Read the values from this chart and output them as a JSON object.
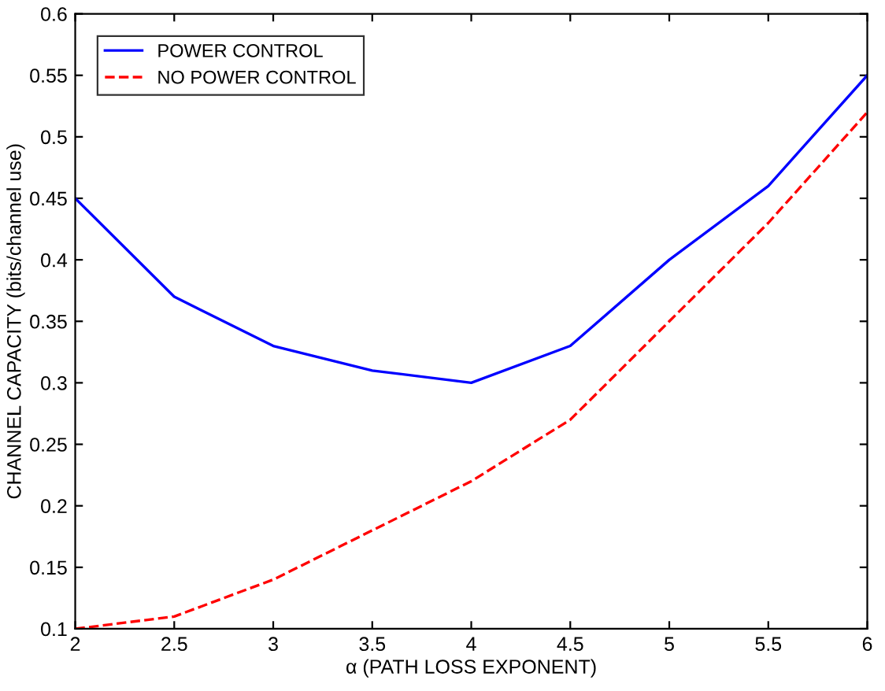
{
  "chart_data": {
    "type": "line",
    "xlabel": "α (PATH LOSS EXPONENT)",
    "ylabel": "CHANNEL CAPACITY (bits/channel use)",
    "x": [
      2,
      2.5,
      3,
      3.5,
      4,
      4.5,
      5,
      5.5,
      6
    ],
    "series": [
      {
        "name": "POWER CONTROL",
        "color": "#0000ff",
        "line_style": "solid",
        "values": [
          0.45,
          0.37,
          0.33,
          0.31,
          0.3,
          0.33,
          0.4,
          0.46,
          0.55
        ]
      },
      {
        "name": "NO POWER CONTROL",
        "color": "#ff0000",
        "line_style": "dashed",
        "values": [
          0.1,
          0.11,
          0.14,
          0.18,
          0.22,
          0.27,
          0.35,
          0.43,
          0.52
        ]
      }
    ],
    "xlim": [
      2,
      6
    ],
    "ylim": [
      0.1,
      0.6
    ],
    "xticks": [
      2,
      2.5,
      3,
      3.5,
      4,
      4.5,
      5,
      5.5,
      6
    ],
    "yticks": [
      0.1,
      0.15,
      0.2,
      0.25,
      0.3,
      0.35,
      0.4,
      0.45,
      0.5,
      0.55,
      0.6
    ],
    "grid": false,
    "legend": "top left",
    "marker": "none"
  }
}
